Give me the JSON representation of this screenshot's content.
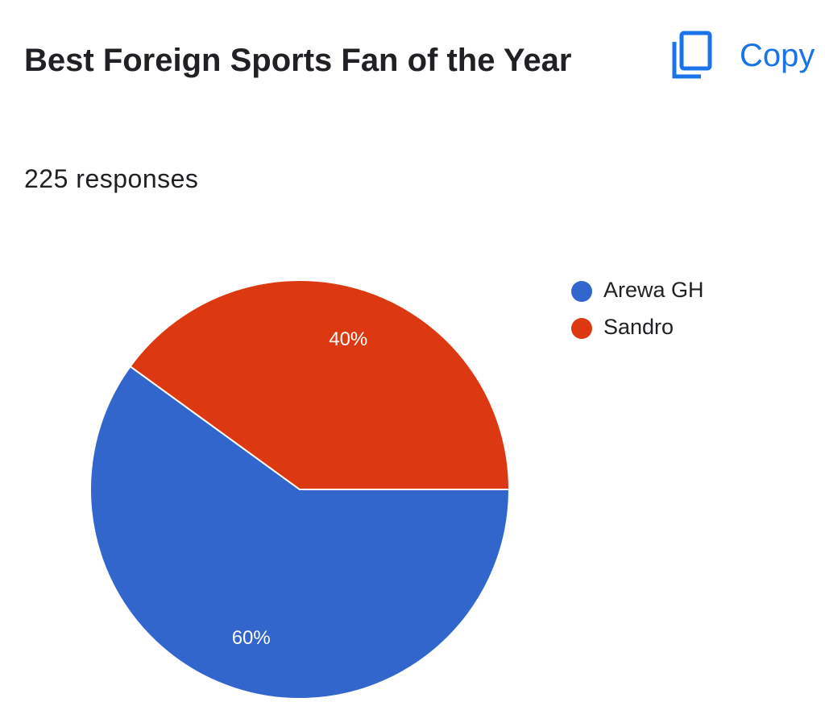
{
  "copy_button_label": "Copy",
  "chart_data": {
    "type": "pie",
    "title": "Best Foreign Sports Fan of the Year",
    "subtitle": "225 responses",
    "categories": [
      "Arewa GH",
      "Sandro"
    ],
    "values": [
      60,
      40
    ],
    "value_labels": [
      "60%",
      "40%"
    ],
    "colors": [
      "#3366cc",
      "#dc3912"
    ],
    "legend": "right"
  }
}
